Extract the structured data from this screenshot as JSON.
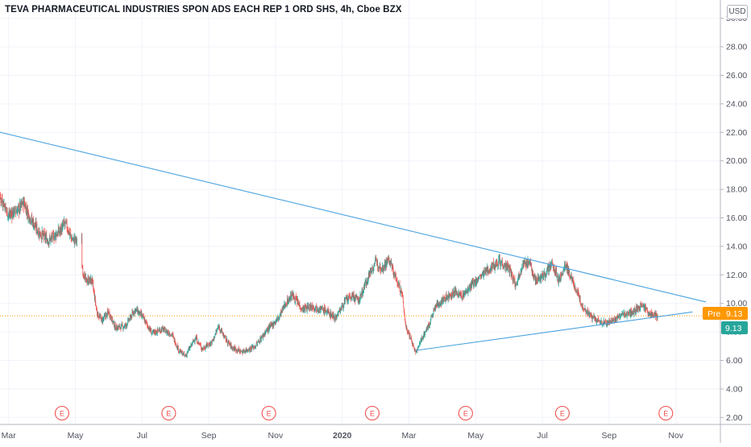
{
  "header": {
    "symbol_title": "TEVA PHARMACEUTICAL INDUSTRIES SPON ADS EACH REP 1 ORD SHS, 4h, Cboe BZX",
    "currency": "USD"
  },
  "price_tags": {
    "pre_label": "Pre",
    "pre_value": "9.13",
    "last_value": "9.13"
  },
  "earnings_marker": "E",
  "colors": {
    "up": "#26a69a",
    "down": "#ef5350",
    "trendline": "#4aa3df",
    "pre_tag": "#ff9800",
    "last_tag": "#26a69a",
    "grid": "#f0f3fa"
  },
  "chart_data": {
    "type": "candlestick",
    "y_axis": {
      "min": 1.0,
      "max": 31.0,
      "ticks": [
        "2.00",
        "4.00",
        "6.00",
        "8.00",
        "10.00",
        "12.00",
        "14.00",
        "16.00",
        "18.00",
        "20.00",
        "22.00",
        "24.00",
        "26.00",
        "28.00",
        "30.00"
      ]
    },
    "x_ticks": [
      {
        "label": "Mar",
        "t": 0.5,
        "bold": false
      },
      {
        "label": "May",
        "t": 2.5,
        "bold": false
      },
      {
        "label": "Jul",
        "t": 4.5,
        "bold": false
      },
      {
        "label": "Sep",
        "t": 6.5,
        "bold": false
      },
      {
        "label": "Nov",
        "t": 8.5,
        "bold": false
      },
      {
        "label": "2020",
        "t": 10.5,
        "bold": true
      },
      {
        "label": "Mar",
        "t": 12.5,
        "bold": false
      },
      {
        "label": "May",
        "t": 14.5,
        "bold": false
      },
      {
        "label": "Jul",
        "t": 16.5,
        "bold": false
      },
      {
        "label": "Sep",
        "t": 18.5,
        "bold": false
      },
      {
        "label": "Nov",
        "t": 20.5,
        "bold": false
      }
    ],
    "t_range": [
      0,
      21.4
    ],
    "price_path": [
      [
        0.0,
        17.8
      ],
      [
        0.3,
        17.3
      ],
      [
        0.5,
        16.2
      ],
      [
        0.8,
        16.6
      ],
      [
        0.95,
        17.1
      ],
      [
        1.1,
        16.2
      ],
      [
        1.4,
        15.0
      ],
      [
        1.7,
        14.4
      ],
      [
        2.0,
        15.0
      ],
      [
        2.2,
        15.6
      ],
      [
        2.4,
        14.5
      ],
      [
        2.55,
        14.4
      ],
      [
        2.7,
        12.6
      ],
      [
        2.8,
        11.6
      ],
      [
        3.0,
        11.6
      ],
      [
        3.15,
        9.3
      ],
      [
        3.3,
        8.8
      ],
      [
        3.5,
        9.4
      ],
      [
        3.7,
        8.3
      ],
      [
        4.0,
        8.4
      ],
      [
        4.3,
        9.6
      ],
      [
        4.5,
        9.1
      ],
      [
        4.8,
        7.9
      ],
      [
        5.1,
        8.2
      ],
      [
        5.4,
        7.8
      ],
      [
        5.6,
        6.7
      ],
      [
        5.8,
        6.3
      ],
      [
        6.1,
        7.6
      ],
      [
        6.3,
        6.8
      ],
      [
        6.6,
        7.3
      ],
      [
        6.8,
        8.4
      ],
      [
        7.0,
        7.5
      ],
      [
        7.2,
        6.9
      ],
      [
        7.5,
        6.6
      ],
      [
        7.9,
        7.0
      ],
      [
        8.2,
        8.0
      ],
      [
        8.6,
        9.0
      ],
      [
        8.8,
        10.0
      ],
      [
        9.0,
        10.6
      ],
      [
        9.3,
        9.6
      ],
      [
        9.6,
        9.8
      ],
      [
        10.0,
        9.5
      ],
      [
        10.3,
        9.0
      ],
      [
        10.6,
        10.2
      ],
      [
        10.8,
        10.5
      ],
      [
        11.0,
        10.2
      ],
      [
        11.3,
        12.0
      ],
      [
        11.5,
        12.9
      ],
      [
        11.7,
        12.5
      ],
      [
        11.9,
        13.1
      ],
      [
        12.1,
        11.8
      ],
      [
        12.3,
        10.6
      ],
      [
        12.4,
        8.4
      ],
      [
        12.55,
        7.6
      ],
      [
        12.7,
        6.5
      ],
      [
        12.9,
        7.6
      ],
      [
        13.1,
        8.5
      ],
      [
        13.3,
        9.8
      ],
      [
        13.6,
        10.4
      ],
      [
        13.9,
        10.8
      ],
      [
        14.1,
        10.5
      ],
      [
        14.4,
        11.3
      ],
      [
        14.7,
        12.0
      ],
      [
        15.0,
        12.6
      ],
      [
        15.2,
        13.0
      ],
      [
        15.5,
        12.4
      ],
      [
        15.7,
        11.3
      ],
      [
        15.9,
        12.7
      ],
      [
        16.1,
        12.9
      ],
      [
        16.3,
        11.6
      ],
      [
        16.5,
        11.9
      ],
      [
        16.8,
        12.7
      ],
      [
        17.0,
        11.6
      ],
      [
        17.2,
        12.7
      ],
      [
        17.5,
        11.0
      ],
      [
        17.7,
        9.8
      ],
      [
        17.9,
        9.2
      ],
      [
        18.1,
        8.8
      ],
      [
        18.4,
        8.6
      ],
      [
        18.7,
        8.9
      ],
      [
        18.9,
        9.2
      ],
      [
        19.2,
        9.4
      ],
      [
        19.5,
        9.9
      ],
      [
        19.7,
        9.3
      ],
      [
        19.95,
        9.13
      ]
    ],
    "last_price": 9.13,
    "pre_price": 9.13,
    "trendlines": [
      {
        "name": "upper",
        "points": [
          [
            -0.1,
            22.2
          ],
          [
            21.4,
            10.1
          ]
        ]
      },
      {
        "name": "lower",
        "points": [
          [
            12.7,
            6.7
          ],
          [
            21.0,
            9.4
          ]
        ]
      }
    ],
    "earnings_t": [
      2.1,
      5.3,
      8.3,
      11.4,
      14.2,
      17.1,
      20.2
    ]
  }
}
